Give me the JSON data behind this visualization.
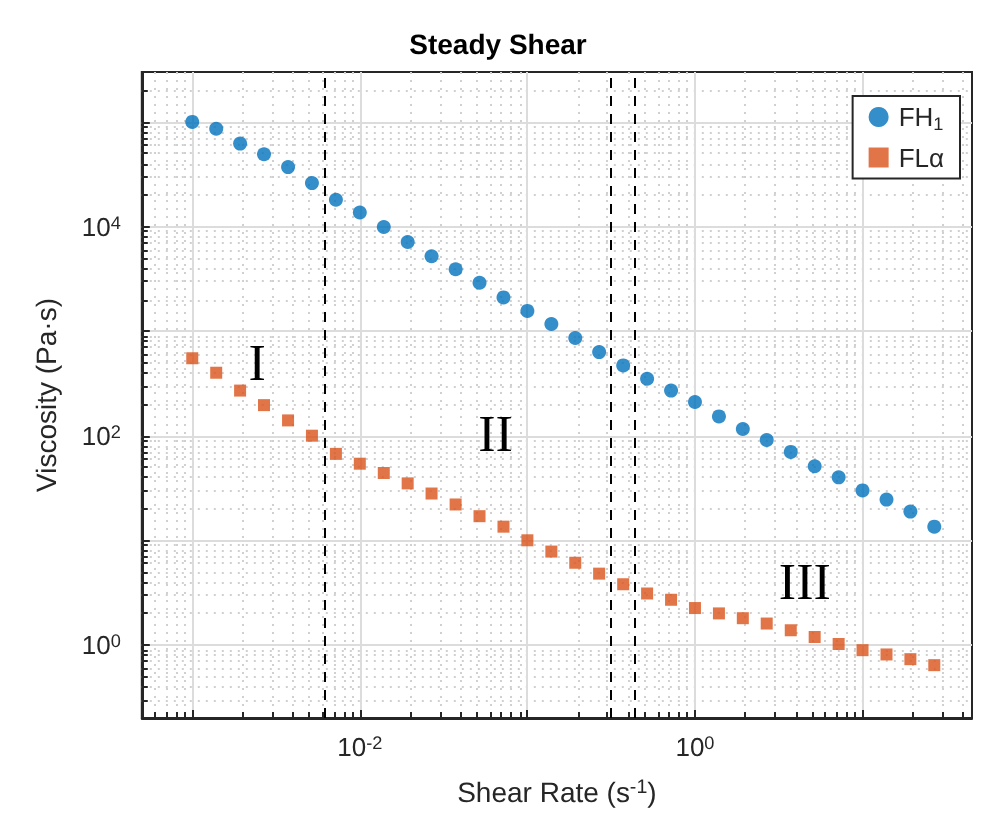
{
  "chart_data": {
    "type": "scatter",
    "title": "Steady Shear",
    "xlabel": "Shear Rate (s$^{-1}$)",
    "ylabel": "Viscosity (Pa·s)",
    "x": [
      0.001,
      0.00139,
      0.00193,
      0.00268,
      0.00373,
      0.00518,
      0.0072,
      0.01,
      0.0139,
      0.0193,
      0.0268,
      0.0373,
      0.0518,
      0.072,
      0.1,
      0.139,
      0.193,
      0.268,
      0.373,
      0.518,
      0.72,
      1,
      1.39,
      1.93,
      2.68,
      3.73,
      5.18,
      7.2,
      10,
      13.9,
      19.3,
      26.8
    ],
    "series": [
      {
        "name": "FH$_{1}$",
        "color": "#0072bd",
        "marker": "circle",
        "values": [
          100000,
          86000,
          62000,
          49000,
          37000,
          26000,
          18000,
          13600,
          9900,
          7100,
          5200,
          3900,
          2900,
          2100,
          1560,
          1170,
          860,
          630,
          470,
          350,
          270,
          210,
          153,
          116,
          91,
          70,
          51,
          40,
          30,
          24.5,
          18.8,
          13.5
        ]
      },
      {
        "name": "FLα",
        "color": "#d95319",
        "marker": "square",
        "values": [
          550,
          400,
          270,
          196,
          140,
          100,
          67,
          54,
          44,
          35,
          28,
          22,
          17,
          13.5,
          10,
          7.8,
          6.1,
          4.8,
          3.8,
          3.1,
          2.7,
          2.25,
          2.0,
          1.8,
          1.6,
          1.38,
          1.19,
          1.02,
          0.89,
          0.81,
          0.73,
          0.64
        ]
      }
    ],
    "log": "xy",
    "xlim": [
      0.0005,
      45
    ],
    "ylim": [
      0.2,
      300000
    ],
    "xticks": [
      {
        "value": 0.001,
        "label": null
      },
      {
        "value": 0.01,
        "label": "10$^{-2}$"
      },
      {
        "value": 0.1,
        "label": null
      },
      {
        "value": 1,
        "label": "10$^{0}$"
      },
      {
        "value": 10,
        "label": null
      }
    ],
    "yticks": [
      {
        "value": 1,
        "label": "10$^{0}$"
      },
      {
        "value": 10,
        "label": null
      },
      {
        "value": 100,
        "label": "10$^{2}$"
      },
      {
        "value": 1000,
        "label": null
      },
      {
        "value": 10000,
        "label": "10$^{4}$"
      },
      {
        "value": 100000,
        "label": null
      }
    ],
    "grid": true,
    "legend": "top right",
    "ref_lines": [
      {
        "axis": "x",
        "value": 0.0061,
        "color": "#000000",
        "line_style": "dashed"
      },
      {
        "axis": "x",
        "value": 0.31,
        "color": "#000000",
        "line_style": "dashed"
      },
      {
        "axis": "x",
        "value": 0.44,
        "color": "#000000",
        "line_style": "dashed"
      }
    ],
    "annotations": [
      "I",
      "II",
      "III"
    ]
  }
}
